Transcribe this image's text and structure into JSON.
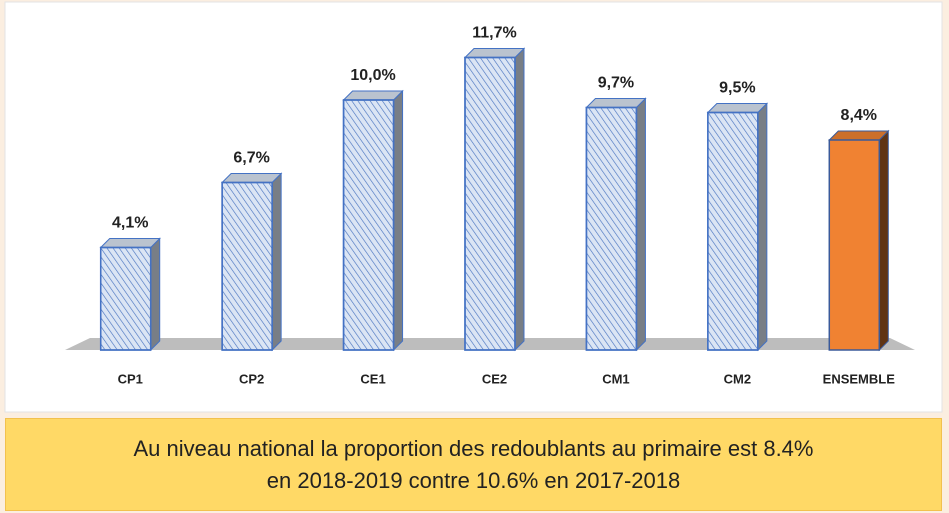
{
  "chart_data": {
    "type": "bar",
    "categories": [
      "CP1",
      "CP2",
      "CE1",
      "CE2",
      "CM1",
      "CM2",
      "ENSEMBLE"
    ],
    "values": [
      4.1,
      6.7,
      10.0,
      11.7,
      9.7,
      9.5,
      8.4
    ],
    "value_labels": [
      "4,1%",
      "6,7%",
      "10,0%",
      "11,7%",
      "9,7%",
      "9,5%",
      "8,4%"
    ],
    "colors": [
      "#dbe5f4",
      "#dbe5f4",
      "#dbe5f4",
      "#dbe5f4",
      "#dbe5f4",
      "#dbe5f4",
      "#f08232"
    ],
    "hatched": [
      true,
      true,
      true,
      true,
      true,
      true,
      false
    ]
  },
  "caption": {
    "lines": [
      "Au niveau national la proportion des redoublants au primaire est 8.4%",
      "en 2018-2019 contre 10.6% en 2017-2018"
    ]
  }
}
